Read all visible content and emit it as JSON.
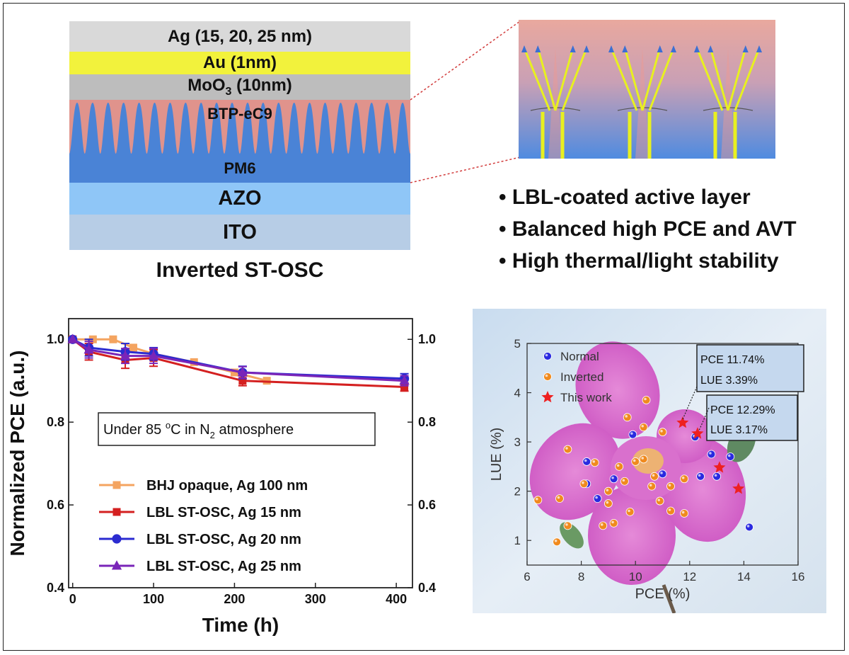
{
  "stack": {
    "ag": "Ag (15, 20, 25 nm)",
    "au": "Au (1nm)",
    "moo3_main": "MoO",
    "moo3_sub": "3",
    "moo3_tail": " (10nm)",
    "btp": "BTP-eC9",
    "pm6": "PM6",
    "azo": "AZO",
    "ito": "ITO",
    "caption": "Inverted ST-OSC"
  },
  "bullets": [
    "• LBL-coated active layer",
    "• Balanced high PCE and AVT",
    "• High thermal/light stability"
  ],
  "colors": {
    "ag": "#d9d9d9",
    "au": "#f2f23c",
    "moo3": "#bdbdbd",
    "acceptor": "#e0938c",
    "donor": "#4a83d6",
    "azo": "#8fc6f7",
    "ito": "#b7cde6",
    "ray": "#e8f020",
    "flower": "#d25cc8"
  },
  "stability": {
    "annotation_main": "Under 85 ",
    "annotation_deg": "o",
    "annotation_c": "C in N",
    "annotation_sub": "2",
    "annotation_tail": " atmosphere"
  },
  "lue_plot": {
    "box1": [
      "PCE 11.74%",
      "LUE 3.39%"
    ],
    "box2": [
      "PCE 12.29%",
      "LUE 3.17%"
    ]
  },
  "chart_data": [
    {
      "type": "line",
      "xlabel": "Time (h)",
      "ylabel": "Normalized PCE (a.u.)",
      "xlim": [
        -5,
        420
      ],
      "ylim": [
        0.4,
        1.05
      ],
      "xticks": [
        0,
        100,
        200,
        300,
        400
      ],
      "yticks": [
        0.4,
        0.6,
        0.8,
        1.0
      ],
      "ytick_labels": [
        "0.4",
        "0.6",
        "0.8",
        "1.0"
      ],
      "legend_position": "bottom-left",
      "series": [
        {
          "name": "BHJ opaque, Ag 100 nm",
          "color": "#f4a460",
          "marker": "square",
          "x": [
            0,
            25,
            50,
            75,
            100,
            150,
            200,
            240
          ],
          "y": [
            1.0,
            1.0,
            1.0,
            0.98,
            0.965,
            0.945,
            0.92,
            0.9
          ]
        },
        {
          "name": "LBL ST-OSC, Ag 15 nm",
          "color": "#d42020",
          "marker": "square",
          "x": [
            0,
            20,
            65,
            100,
            210,
            410
          ],
          "y": [
            1.0,
            0.97,
            0.95,
            0.955,
            0.9,
            0.885
          ],
          "err": [
            0.0,
            0.02,
            0.02,
            0.02,
            0.012,
            0.01
          ]
        },
        {
          "name": "LBL ST-OSC, Ag 20 nm",
          "color": "#2b2bd0",
          "marker": "circle",
          "x": [
            0,
            20,
            65,
            100,
            210,
            410
          ],
          "y": [
            1.0,
            0.98,
            0.97,
            0.965,
            0.92,
            0.905
          ],
          "err": [
            0.0,
            0.02,
            0.02,
            0.015,
            0.015,
            0.012
          ]
        },
        {
          "name": "LBL ST-OSC, Ag 25 nm",
          "color": "#7a25b8",
          "marker": "triangle",
          "x": [
            0,
            20,
            65,
            100,
            210,
            410
          ],
          "y": [
            1.0,
            0.975,
            0.96,
            0.96,
            0.92,
            0.9
          ],
          "err": [
            0.0,
            0.02,
            0.018,
            0.018,
            0.014,
            0.012
          ]
        }
      ]
    },
    {
      "type": "scatter",
      "xlabel": "PCE (%)",
      "ylabel": "LUE (%)",
      "xlim": [
        6,
        16
      ],
      "ylim": [
        0.5,
        5
      ],
      "xticks": [
        6,
        8,
        10,
        12,
        14,
        16
      ],
      "yticks": [
        1,
        2,
        3,
        4,
        5
      ],
      "legend_position": "top-left",
      "series": [
        {
          "name": "Normal",
          "color": "#2a2ae0",
          "marker": "circle",
          "points": [
            [
              8.2,
              2.6
            ],
            [
              8.2,
              2.15
            ],
            [
              8.6,
              1.85
            ],
            [
              9.2,
              2.25
            ],
            [
              9.9,
              3.15
            ],
            [
              11.0,
              2.35
            ],
            [
              12.2,
              3.1
            ],
            [
              12.4,
              2.3
            ],
            [
              12.8,
              2.75
            ],
            [
              13.0,
              2.3
            ],
            [
              13.5,
              2.7
            ],
            [
              14.2,
              1.27
            ]
          ]
        },
        {
          "name": "Inverted",
          "color": "#f08a1e",
          "marker": "circle",
          "points": [
            [
              6.4,
              1.82
            ],
            [
              7.1,
              0.97
            ],
            [
              7.2,
              1.85
            ],
            [
              7.5,
              1.3
            ],
            [
              7.5,
              2.85
            ],
            [
              8.1,
              2.15
            ],
            [
              8.5,
              2.58
            ],
            [
              8.8,
              1.3
            ],
            [
              9.0,
              1.75
            ],
            [
              9.0,
              2.0
            ],
            [
              9.2,
              1.35
            ],
            [
              9.4,
              2.5
            ],
            [
              9.6,
              2.2
            ],
            [
              9.7,
              3.5
            ],
            [
              9.8,
              1.58
            ],
            [
              10.0,
              2.6
            ],
            [
              10.3,
              3.3
            ],
            [
              10.3,
              2.65
            ],
            [
              10.4,
              3.85
            ],
            [
              10.6,
              2.1
            ],
            [
              10.7,
              2.3
            ],
            [
              10.9,
              1.8
            ],
            [
              11.0,
              3.2
            ],
            [
              11.3,
              1.6
            ],
            [
              11.3,
              2.1
            ],
            [
              11.8,
              2.25
            ],
            [
              11.8,
              1.55
            ]
          ]
        },
        {
          "name": "This work",
          "color": "#ee2020",
          "marker": "star",
          "points": [
            [
              11.74,
              3.39
            ],
            [
              12.29,
              3.17
            ],
            [
              13.1,
              2.48
            ],
            [
              13.8,
              2.05
            ]
          ]
        }
      ]
    }
  ]
}
